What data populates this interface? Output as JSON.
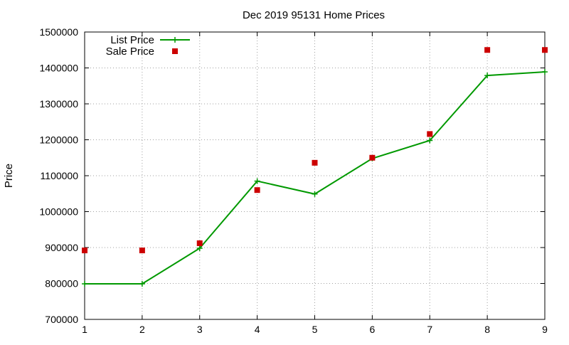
{
  "chart_data": {
    "type": "line",
    "title": "Dec 2019 95131 Home Prices",
    "xlabel": "",
    "ylabel": "Price",
    "x": [
      1,
      2,
      3,
      4,
      5,
      6,
      7,
      8,
      9
    ],
    "xlim": [
      1,
      9
    ],
    "ylim": [
      700000,
      1500000
    ],
    "xticks": [
      "1",
      "2",
      "3",
      "4",
      "5",
      "6",
      "7",
      "8",
      "9"
    ],
    "yticks": [
      "700000",
      "800000",
      "900000",
      "1000000",
      "1100000",
      "1200000",
      "1300000",
      "1400000",
      "1500000"
    ],
    "grid": true,
    "legend_position": "top-left",
    "series": [
      {
        "name": "List Price",
        "style": "line-with-plus-markers",
        "color": "#009900",
        "values": [
          799000,
          799000,
          898000,
          1085000,
          1049000,
          1148000,
          1198000,
          1379000,
          1389000
        ]
      },
      {
        "name": "Sale Price",
        "style": "square-markers",
        "color": "#cc0000",
        "values": [
          892000,
          892000,
          912000,
          1060000,
          1136000,
          1150000,
          1216000,
          1450000,
          1450000
        ]
      }
    ]
  }
}
